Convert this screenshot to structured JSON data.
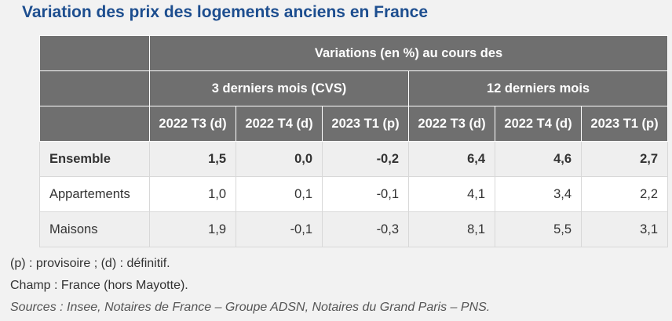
{
  "title": "Variation des prix des logements anciens en France",
  "table": {
    "header_top": "Variations (en %) au cours des",
    "groups": [
      "3 derniers mois (CVS)",
      "12 derniers mois"
    ],
    "columns": [
      "2022 T3 (d)",
      "2022 T4 (d)",
      "2023 T1 (p)",
      "2022 T3 (d)",
      "2022 T4 (d)",
      "2023 T1 (p)"
    ],
    "rows": [
      {
        "label": "Ensemble",
        "values": [
          "1,5",
          "0,0",
          "-0,2",
          "6,4",
          "4,6",
          "2,7"
        ]
      },
      {
        "label": "Appartements",
        "values": [
          "1,0",
          "0,1",
          "-0,1",
          "4,1",
          "3,4",
          "2,2"
        ]
      },
      {
        "label": "Maisons",
        "values": [
          "1,9",
          "-0,1",
          "-0,3",
          "8,1",
          "5,5",
          "3,1"
        ]
      }
    ]
  },
  "notes": {
    "legend": "(p) : provisoire ; (d) : définitif.",
    "champ": "Champ : France (hors Mayotte).",
    "sources": "Sources : Insee, Notaires de France – Groupe ADSN, Notaires du Grand Paris – PNS."
  }
}
